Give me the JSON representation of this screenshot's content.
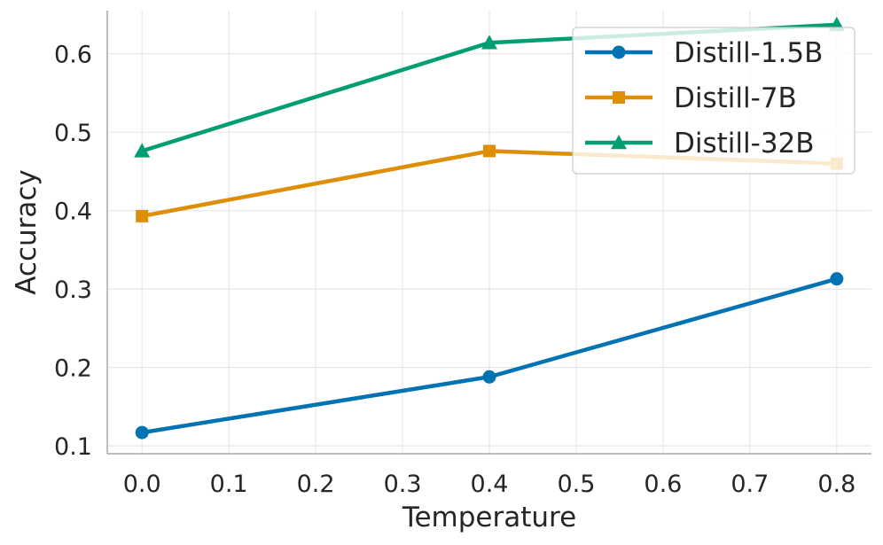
{
  "chart_data": {
    "type": "line",
    "title": "",
    "xlabel": "Temperature",
    "ylabel": "Accuracy",
    "xlim": [
      -0.04,
      0.84
    ],
    "ylim": [
      0.09,
      0.655
    ],
    "xticks": [
      0.0,
      0.1,
      0.2,
      0.3,
      0.4,
      0.5,
      0.6,
      0.7,
      0.8
    ],
    "xtick_labels": [
      "0.0",
      "0.1",
      "0.2",
      "0.3",
      "0.4",
      "0.5",
      "0.6",
      "0.7",
      "0.8"
    ],
    "yticks": [
      0.1,
      0.2,
      0.3,
      0.4,
      0.5,
      0.6
    ],
    "ytick_labels": [
      "0.1",
      "0.2",
      "0.3",
      "0.4",
      "0.5",
      "0.6"
    ],
    "grid": true,
    "legend_position": "top-right",
    "x": [
      0.0,
      0.4,
      0.8
    ],
    "series": [
      {
        "name": "Distill-1.5B",
        "values": [
          0.117,
          0.188,
          0.313
        ],
        "color": "#0173b2",
        "marker": "circle"
      },
      {
        "name": "Distill-7B",
        "values": [
          0.393,
          0.476,
          0.46
        ],
        "color": "#de8f05",
        "marker": "square"
      },
      {
        "name": "Distill-32B",
        "values": [
          0.476,
          0.614,
          0.637
        ],
        "color": "#029e73",
        "marker": "triangle"
      }
    ]
  }
}
